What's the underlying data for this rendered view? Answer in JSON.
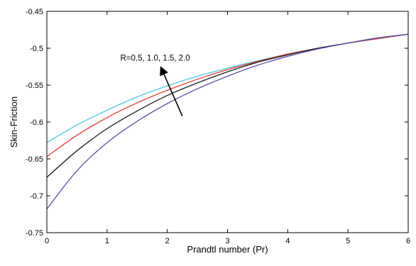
{
  "chart_data": {
    "type": "line",
    "title": "",
    "xlabel": "Prandtl number (Pr)",
    "ylabel": "Skin-Friction",
    "xlim": [
      0,
      6
    ],
    "ylim": [
      -0.75,
      -0.45
    ],
    "xticks": [
      0,
      1,
      2,
      3,
      4,
      5,
      6
    ],
    "yticks": [
      -0.75,
      -0.7,
      -0.65,
      -0.6,
      -0.55,
      -0.5,
      -0.45
    ],
    "xtick_labels": [
      "0",
      "1",
      "2",
      "3",
      "4",
      "5",
      "6"
    ],
    "ytick_labels": [
      "-0.75",
      "-0.7",
      "-0.65",
      "-0.6",
      "-0.55",
      "-0.5",
      "-0.45"
    ],
    "grid": false,
    "legend": null,
    "annotation": {
      "text": "R=0.5, 1.0, 1.5, 2.0",
      "text_at": [
        1.22,
        -0.517
      ],
      "arrow_from": [
        2.25,
        -0.592
      ],
      "arrow_to": [
        1.9,
        -0.527
      ]
    },
    "x": [
      0,
      0.5,
      1,
      1.5,
      2,
      2.5,
      3,
      3.5,
      4,
      4.5,
      5,
      5.5,
      6
    ],
    "series": [
      {
        "color": "#4fc3e0",
        "values": [
          -0.628,
          -0.604,
          -0.584,
          -0.566,
          -0.551,
          -0.538,
          -0.527,
          -0.517,
          -0.508,
          -0.5,
          -0.493,
          -0.487,
          -0.481
        ]
      },
      {
        "color": "#e83a2e",
        "values": [
          -0.647,
          -0.618,
          -0.594,
          -0.574,
          -0.557,
          -0.542,
          -0.529,
          -0.518,
          -0.508,
          -0.5,
          -0.493,
          -0.487,
          -0.481
        ]
      },
      {
        "color": "#1a1a1a",
        "values": [
          -0.675,
          -0.639,
          -0.609,
          -0.585,
          -0.564,
          -0.547,
          -0.532,
          -0.519,
          -0.509,
          -0.5,
          -0.493,
          -0.486,
          -0.481
        ]
      },
      {
        "color": "#5a4fa8",
        "values": [
          -0.718,
          -0.666,
          -0.628,
          -0.599,
          -0.575,
          -0.555,
          -0.538,
          -0.523,
          -0.511,
          -0.501,
          -0.493,
          -0.486,
          -0.481
        ]
      }
    ]
  }
}
